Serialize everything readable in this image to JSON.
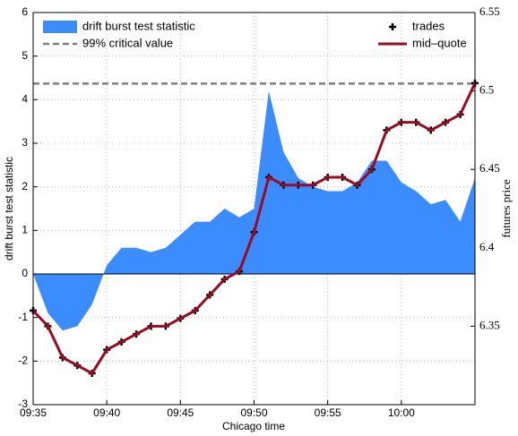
{
  "chart_data": {
    "type": "area",
    "xlabel": "Chicago time",
    "ylabel": "drift burst test statistic",
    "y2label": "futures price",
    "x": [
      "09:35",
      "09:36",
      "09:37",
      "09:38",
      "09:39",
      "09:40",
      "09:41",
      "09:42",
      "09:43",
      "09:44",
      "09:45",
      "09:46",
      "09:47",
      "09:48",
      "09:49",
      "09:50",
      "09:51",
      "09:52",
      "09:53",
      "09:54",
      "09:55",
      "09:56",
      "09:57",
      "09:58",
      "09:59",
      "10:00",
      "10:01",
      "10:02",
      "10:03",
      "10:04",
      "10:05"
    ],
    "xlim": [
      "09:35",
      "10:05"
    ],
    "xticks": [
      "09:35",
      "09:40",
      "09:45",
      "09:50",
      "09:55",
      "10:00"
    ],
    "ylim": [
      -3,
      6
    ],
    "yticks": [
      -3,
      -2,
      -1,
      0,
      1,
      2,
      3,
      4,
      5,
      6
    ],
    "y2lim": [
      6.3,
      6.55
    ],
    "y2ticks": [
      6.35,
      6.4,
      6.45,
      6.5,
      6.55
    ],
    "grid": true,
    "series": [
      {
        "name": "drift burst test statistic",
        "type": "area",
        "color": "#3a8cff",
        "values": [
          0,
          -0.9,
          -1.3,
          -1.2,
          -0.7,
          0.2,
          0.6,
          0.6,
          0.5,
          0.6,
          0.9,
          1.2,
          1.2,
          1.5,
          1.3,
          1.5,
          4.2,
          2.8,
          2.2,
          2.0,
          1.9,
          1.9,
          2.1,
          2.6,
          2.6,
          2.1,
          1.9,
          1.6,
          1.7,
          1.2,
          2.2
        ]
      },
      {
        "name": "99% critical value",
        "type": "hline",
        "color": "#808080",
        "value": 4.37
      },
      {
        "name": "trades",
        "type": "scatter",
        "color": "#000000",
        "axis": "y2",
        "values": [
          6.36,
          6.35,
          6.33,
          6.325,
          6.32,
          6.335,
          6.34,
          6.345,
          6.35,
          6.35,
          6.355,
          6.36,
          6.37,
          6.38,
          6.385,
          6.41,
          6.445,
          6.44,
          6.44,
          6.44,
          6.445,
          6.445,
          6.44,
          6.45,
          6.475,
          6.48,
          6.48,
          6.475,
          6.48,
          6.485,
          6.505
        ]
      },
      {
        "name": "mid–quote",
        "type": "line",
        "color": "#9b0a1e",
        "axis": "y2",
        "values": [
          6.36,
          6.35,
          6.33,
          6.325,
          6.32,
          6.335,
          6.34,
          6.345,
          6.35,
          6.35,
          6.355,
          6.36,
          6.37,
          6.38,
          6.385,
          6.41,
          6.445,
          6.44,
          6.44,
          6.44,
          6.445,
          6.445,
          6.44,
          6.45,
          6.475,
          6.48,
          6.48,
          6.475,
          6.48,
          6.485,
          6.505
        ]
      }
    ]
  }
}
